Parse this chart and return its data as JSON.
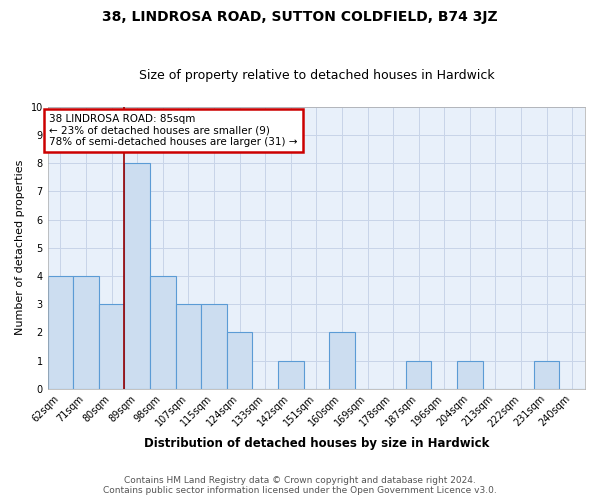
{
  "title": "38, LINDROSA ROAD, SUTTON COLDFIELD, B74 3JZ",
  "subtitle": "Size of property relative to detached houses in Hardwick",
  "xlabel": "Distribution of detached houses by size in Hardwick",
  "ylabel": "Number of detached properties",
  "categories": [
    "62sqm",
    "71sqm",
    "80sqm",
    "89sqm",
    "98sqm",
    "107sqm",
    "115sqm",
    "124sqm",
    "133sqm",
    "142sqm",
    "151sqm",
    "160sqm",
    "169sqm",
    "178sqm",
    "187sqm",
    "196sqm",
    "204sqm",
    "213sqm",
    "222sqm",
    "231sqm",
    "240sqm"
  ],
  "values": [
    4,
    4,
    3,
    8,
    4,
    3,
    3,
    2,
    0,
    1,
    0,
    2,
    0,
    0,
    1,
    0,
    1,
    0,
    0,
    1,
    0
  ],
  "bar_color": "#ccddf0",
  "bar_edge_color": "#5b9bd5",
  "subject_vline_x": 2.5,
  "subject_label": "38 LINDROSA ROAD: 85sqm",
  "annotation_line1": "← 23% of detached houses are smaller (9)",
  "annotation_line2": "78% of semi-detached houses are larger (31) →",
  "annotation_box_color": "#ffffff",
  "annotation_box_edge_color": "#cc0000",
  "subject_vline_color": "#990000",
  "ylim": [
    0,
    10
  ],
  "yticks": [
    0,
    1,
    2,
    3,
    4,
    5,
    6,
    7,
    8,
    9,
    10
  ],
  "footer_line1": "Contains HM Land Registry data © Crown copyright and database right 2024.",
  "footer_line2": "Contains public sector information licensed under the Open Government Licence v3.0.",
  "background_color": "#ffffff",
  "plot_bg_color": "#e8f0fa",
  "grid_color": "#c8d4e8",
  "title_fontsize": 10,
  "subtitle_fontsize": 9,
  "xlabel_fontsize": 8.5,
  "ylabel_fontsize": 8,
  "tick_fontsize": 7,
  "footer_fontsize": 6.5,
  "annot_fontsize": 7.5
}
